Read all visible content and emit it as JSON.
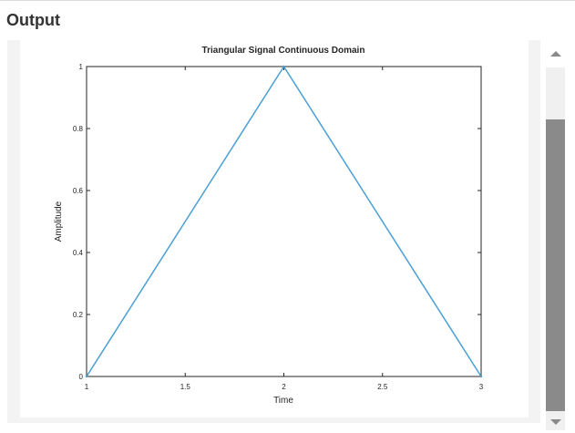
{
  "section": {
    "title": "Output"
  },
  "colors": {
    "line": "#4a9fd4",
    "axis": "#262626",
    "panel": "#f3f3f3",
    "thumb": "#8a8a8a"
  },
  "scrollbar": {
    "up_icon": "triangle-up",
    "down_icon": "triangle-down"
  },
  "chart_data": {
    "type": "line",
    "title": "Triangular Signal Continuous Domain",
    "xlabel": "Time",
    "ylabel": "Amplitude",
    "xlim": [
      1,
      3
    ],
    "ylim": [
      0,
      1
    ],
    "xticks": [
      1,
      1.5,
      2,
      2.5,
      3
    ],
    "xtick_labels": [
      "1",
      "1.5",
      "2",
      "2.5",
      "3"
    ],
    "yticks": [
      0,
      0.2,
      0.4,
      0.6,
      0.8,
      1
    ],
    "ytick_labels": [
      "0",
      "0.2",
      "0.4",
      "0.6",
      "0.8",
      "1"
    ],
    "grid": false,
    "series": [
      {
        "x": [
          1,
          2,
          3
        ],
        "y": [
          0,
          1,
          0
        ]
      }
    ]
  }
}
